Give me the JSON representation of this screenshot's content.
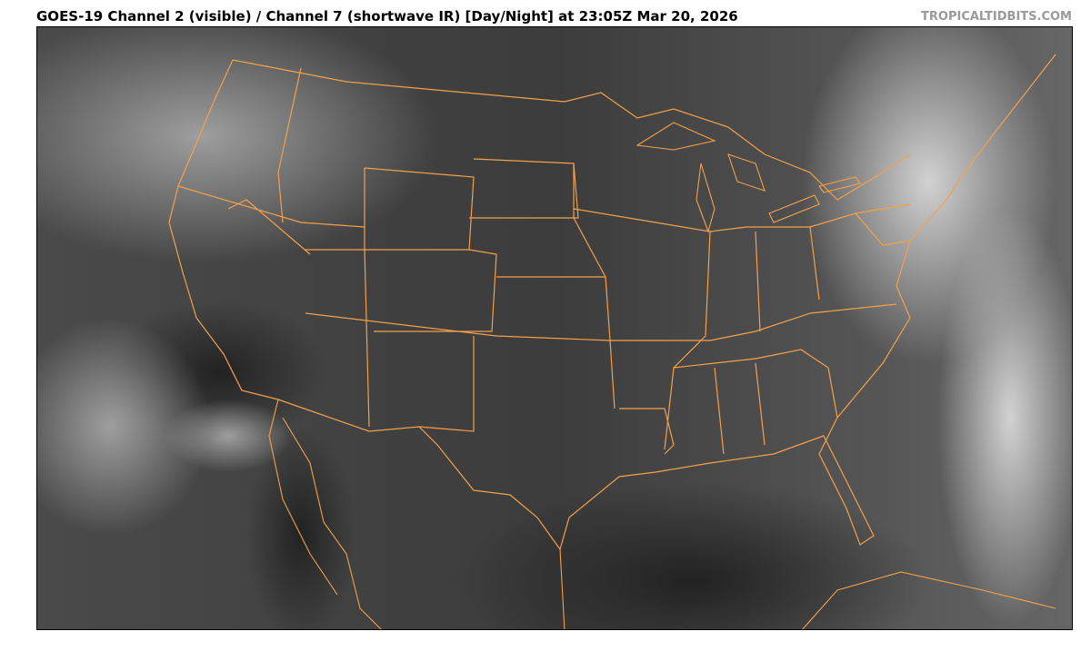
{
  "header": {
    "title": "GOES-19 Channel 2 (visible) / Channel 7 (shortwave IR) [Day/Night] at 23:05Z Mar 20, 2026",
    "credit": "TROPICALTIDBITS.COM"
  },
  "map": {
    "product": "GOES-19 satellite imagery",
    "region": "Continental United States",
    "colors": {
      "boundaries": "#f5a04a",
      "land": "#3e3e3e",
      "ocean": "#242424",
      "clouds": "#c8c8c8"
    }
  }
}
